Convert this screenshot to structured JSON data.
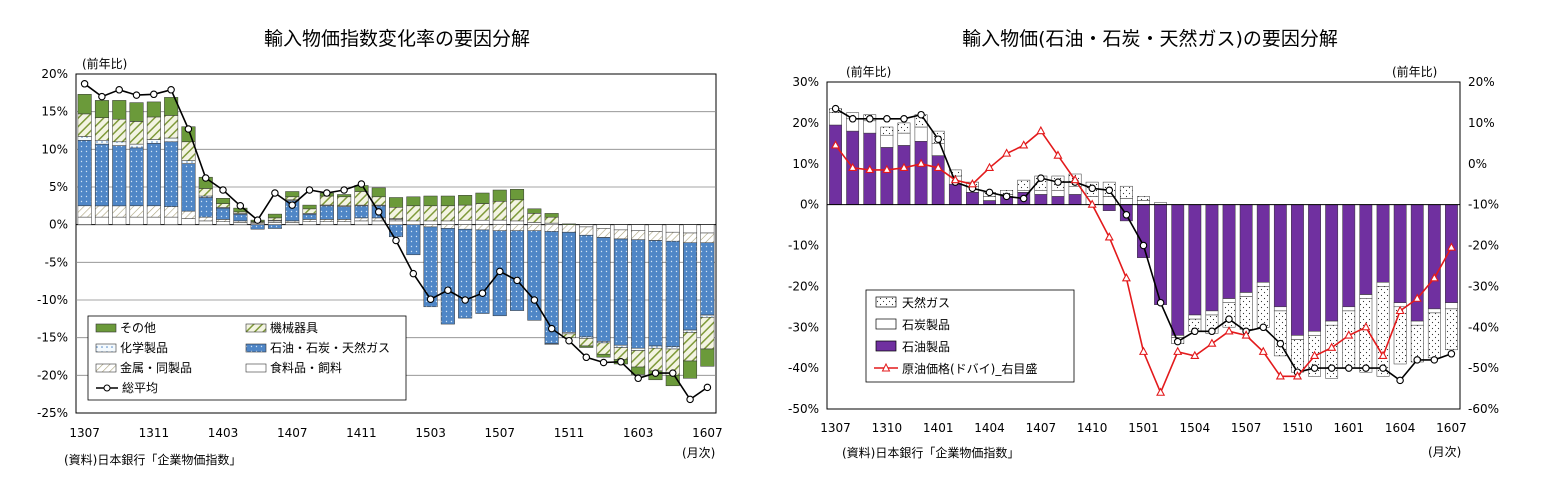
{
  "colors": {
    "sonota": "#6b9a3a",
    "kikai": "#b8c98a",
    "kagaku": "#e6f3fb",
    "sekiyu_blue": "#4f86c6",
    "kinzoku": "#e8e4c8",
    "shokuryo": "#ffffff",
    "avg_line": "#000000",
    "tennen_gas": "#ffffff",
    "sekitan": "#ffffff",
    "sekiyu_purple": "#7030a0",
    "crude": "#e31a1c"
  },
  "chart_data": [
    {
      "type": "bar",
      "stacked": true,
      "title": "輸入物価指数変化率の要因分解",
      "unit_label": "(前年比)",
      "month_label": "(月次)",
      "source": "(資料)日本銀行「企業物価指数」",
      "x": [
        "1307",
        "1308",
        "1309",
        "1310",
        "1311",
        "1312",
        "1401",
        "1402",
        "1403",
        "1404",
        "1405",
        "1406",
        "1407",
        "1408",
        "1409",
        "1410",
        "1411",
        "1412",
        "1501",
        "1502",
        "1503",
        "1504",
        "1505",
        "1506",
        "1507",
        "1508",
        "1509",
        "1510",
        "1511",
        "1512",
        "1601",
        "1602",
        "1603",
        "1604",
        "1605",
        "1606",
        "1607"
      ],
      "x_tick_labels": [
        "1307",
        "1311",
        "1403",
        "1407",
        "1411",
        "1503",
        "1507",
        "1511",
        "1603",
        "1607"
      ],
      "x_tick_every": 4,
      "ylim": [
        -25,
        20
      ],
      "y_ticks": [
        -25,
        -20,
        -15,
        -10,
        -5,
        0,
        5,
        10,
        15,
        20
      ],
      "y_tick_labels": [
        "-25%",
        "-20%",
        "-15%",
        "-10%",
        "-5%",
        "0%",
        "5%",
        "10%",
        "15%",
        "20%"
      ],
      "grid": true,
      "legend_position": "bottom-left",
      "series": [
        {
          "name": "食料品・飼料",
          "key": "shokuryo",
          "values": [
            1.0,
            1.0,
            1.0,
            1.0,
            1.0,
            1.0,
            0.8,
            0.5,
            0.4,
            0.3,
            0.2,
            0.3,
            0.3,
            0.4,
            0.4,
            0.4,
            0.5,
            0.5,
            0.5,
            0.5,
            0.5,
            0.5,
            0.6,
            0.6,
            0.6,
            0.5,
            0.3,
            0.2,
            0.0,
            -0.3,
            -0.5,
            -0.7,
            -0.8,
            -0.9,
            -1.0,
            -1.1,
            -1.1
          ]
        },
        {
          "name": "金属・同製品",
          "key": "kinzoku",
          "values": [
            1.5,
            1.5,
            1.5,
            1.5,
            1.5,
            1.4,
            1.0,
            0.5,
            0.3,
            0.2,
            0.1,
            0.2,
            0.2,
            0.3,
            0.3,
            0.3,
            0.4,
            0.4,
            0.2,
            0.0,
            -0.3,
            -0.5,
            -0.6,
            -0.7,
            -0.8,
            -0.8,
            -0.8,
            -0.9,
            -1.0,
            -1.1,
            -1.2,
            -1.2,
            -1.2,
            -1.2,
            -1.2,
            -1.3,
            -1.3
          ]
        },
        {
          "name": "石油・石炭・天然ガス",
          "key": "sekiyu",
          "values": [
            8.7,
            8.2,
            8.0,
            7.7,
            8.3,
            8.6,
            6.3,
            2.6,
            1.5,
            0.9,
            -0.6,
            -0.5,
            2.7,
            0.7,
            1.8,
            1.7,
            1.6,
            1.6,
            -1.6,
            -4.0,
            -10.6,
            -12.7,
            -11.8,
            -11.1,
            -11.3,
            -10.6,
            -11.9,
            -14.9,
            -13.3,
            -13.5,
            -13.8,
            -14.1,
            -14.4,
            -14.0,
            -14.0,
            -11.6,
            -9.6
          ]
        },
        {
          "name": "化学製品",
          "key": "kagaku",
          "values": [
            0.5,
            0.5,
            0.5,
            0.5,
            0.5,
            0.5,
            0.4,
            0.2,
            0.1,
            0.1,
            0.0,
            0.1,
            0.1,
            0.1,
            0.1,
            0.1,
            0.1,
            0.1,
            0.1,
            0.0,
            0.0,
            0.0,
            0.0,
            0.0,
            0.0,
            0.0,
            0.0,
            -0.1,
            -0.2,
            -0.2,
            -0.2,
            -0.3,
            -0.3,
            -0.3,
            -0.3,
            -0.3,
            -0.3
          ]
        },
        {
          "name": "機械器具",
          "key": "kikai",
          "values": [
            3.0,
            3.0,
            3.0,
            3.0,
            3.0,
            3.0,
            2.5,
            1.0,
            0.5,
            0.2,
            0.1,
            0.3,
            0.4,
            0.6,
            1.2,
            1.2,
            1.8,
            1.1,
            1.5,
            2.0,
            2.0,
            2.0,
            2.0,
            2.2,
            2.5,
            2.8,
            1.2,
            0.8,
            -0.5,
            -1.0,
            -1.5,
            -1.6,
            -2.2,
            -3.0,
            -3.5,
            -3.8,
            -4.2
          ]
        },
        {
          "name": "その他",
          "key": "sonota",
          "values": [
            2.6,
            2.3,
            2.5,
            2.5,
            2.0,
            2.4,
            2.0,
            1.5,
            0.7,
            0.5,
            0.2,
            0.5,
            0.7,
            0.5,
            0.4,
            0.3,
            0.8,
            1.2,
            1.3,
            1.2,
            1.3,
            1.3,
            1.3,
            1.4,
            1.5,
            1.4,
            0.6,
            0.5,
            0.1,
            -0.2,
            -0.4,
            -0.6,
            -1.0,
            -1.2,
            -1.4,
            -2.3,
            -2.3
          ]
        }
      ],
      "line": {
        "name": "総平均",
        "key": "avg",
        "values": [
          18.7,
          17.0,
          17.9,
          17.2,
          17.3,
          17.9,
          12.7,
          6.2,
          4.6,
          2.5,
          0.6,
          4.2,
          2.6,
          4.6,
          4.2,
          4.6,
          5.4,
          1.7,
          -2.1,
          -6.5,
          -9.9,
          -8.7,
          -10.0,
          -9.1,
          -6.2,
          -7.4,
          -10.0,
          -13.8,
          -15.4,
          -17.6,
          -18.3,
          -18.2,
          -20.4,
          -19.7,
          -19.7,
          -23.2,
          -21.6
        ]
      },
      "legend_order": [
        "sonota",
        "kikai",
        "kagaku",
        "sekiyu",
        "kinzoku",
        "shokuryo",
        "avg"
      ]
    },
    {
      "type": "bar",
      "stacked": true,
      "dual_axis": true,
      "title": "輸入物価(石油・石炭・天然ガス)の要因分解",
      "unit_label_left": "(前年比)",
      "unit_label_right": "(前年比)",
      "month_label": "(月次)",
      "source": "(資料)日本銀行「企業物価指数」",
      "x": [
        "1307",
        "1308",
        "1309",
        "1310",
        "1311",
        "1312",
        "1401",
        "1402",
        "1403",
        "1404",
        "1405",
        "1406",
        "1407",
        "1408",
        "1409",
        "1410",
        "1411",
        "1412",
        "1501",
        "1502",
        "1503",
        "1504",
        "1505",
        "1506",
        "1507",
        "1508",
        "1509",
        "1510",
        "1511",
        "1512",
        "1601",
        "1602",
        "1603",
        "1604",
        "1605",
        "1606",
        "1607"
      ],
      "x_tick_labels": [
        "1307",
        "1310",
        "1401",
        "1404",
        "1407",
        "1410",
        "1501",
        "1504",
        "1507",
        "1510",
        "1601",
        "1604",
        "1607"
      ],
      "x_tick_every": 3,
      "ylim": [
        -50,
        30
      ],
      "y_ticks": [
        -50,
        -40,
        -30,
        -20,
        -10,
        0,
        10,
        20,
        30
      ],
      "y_tick_labels": [
        "-50%",
        "-40%",
        "-30%",
        "-20%",
        "-10%",
        "0%",
        "10%",
        "20%",
        "30%"
      ],
      "y2lim": [
        -60,
        20
      ],
      "y2_ticks": [
        -60,
        -50,
        -40,
        -30,
        -20,
        -10,
        0,
        10,
        20
      ],
      "y2_tick_labels": [
        "-60%",
        "-50%",
        "-40%",
        "-30%",
        "-20%",
        "-10%",
        "0%",
        "10%",
        "20%"
      ],
      "grid": false,
      "legend_position": "bottom-left",
      "series": [
        {
          "name": "石油製品",
          "key": "sekiyu",
          "values": [
            19.5,
            18.0,
            17.5,
            14.0,
            14.5,
            15.5,
            12.0,
            5.0,
            3.0,
            1.0,
            2.0,
            3.0,
            2.5,
            2.0,
            2.5,
            0.0,
            -1.5,
            -4.0,
            -13.0,
            -24.5,
            -32.0,
            -27.0,
            -26.0,
            -23.0,
            -21.5,
            -19.0,
            -25.0,
            -32.0,
            -31.0,
            -28.5,
            -25.0,
            -22.0,
            -19.0,
            -24.0,
            -28.5,
            -25.5,
            -24.0
          ]
        },
        {
          "name": "石炭製品",
          "key": "sekitan",
          "values": [
            3.0,
            3.0,
            3.0,
            3.0,
            3.0,
            3.5,
            3.0,
            2.0,
            1.5,
            1.0,
            0.5,
            0.5,
            1.0,
            1.5,
            2.0,
            2.0,
            2.0,
            1.5,
            1.0,
            0.5,
            -0.5,
            -1.0,
            -1.0,
            -1.0,
            -1.0,
            -1.0,
            -1.0,
            -1.0,
            -1.0,
            -1.0,
            -1.0,
            -1.0,
            -1.0,
            -1.0,
            -1.0,
            -1.0,
            -1.5
          ]
        },
        {
          "name": "天然ガス",
          "key": "tennen",
          "values": [
            1.0,
            1.5,
            1.5,
            2.0,
            2.5,
            3.0,
            3.0,
            1.5,
            1.0,
            1.0,
            1.0,
            2.5,
            3.5,
            3.5,
            3.0,
            3.5,
            3.5,
            3.0,
            1.0,
            0.0,
            -1.5,
            -3.0,
            -4.5,
            -6.0,
            -8.0,
            -10.0,
            -11.0,
            -8.0,
            -10.0,
            -13.0,
            -14.0,
            -18.0,
            -22.0,
            -14.0,
            -9.0,
            -11.0,
            -10.0
          ]
        }
      ],
      "line": {
        "name": "合計",
        "key": "total",
        "values": [
          23.5,
          21.0,
          21.0,
          21.0,
          21.0,
          22.0,
          16.0,
          5.5,
          4.0,
          3.0,
          2.0,
          1.5,
          6.5,
          5.5,
          5.5,
          4.0,
          3.5,
          -2.5,
          -10.0,
          -24.0,
          -33.5,
          -31.0,
          -31.0,
          -28.0,
          -31.0,
          -30.0,
          -34.0,
          -41.0,
          -40.0,
          -40.0,
          -40.0,
          -40.0,
          -40.0,
          -43.0,
          -38.0,
          -38.0,
          -36.5
        ]
      },
      "line2": {
        "name": "原油価格(ドバイ)_右目盛",
        "key": "crude",
        "axis": "right",
        "values": [
          4.5,
          -1.0,
          -1.5,
          -1.5,
          -1.0,
          0.0,
          -1.0,
          -4.0,
          -5.0,
          -1.0,
          2.5,
          4.5,
          8.0,
          2.0,
          -4.0,
          -10.0,
          -18.0,
          -28.0,
          -46.0,
          -56.0,
          -46.0,
          -47.0,
          -44.0,
          -41.0,
          -42.0,
          -46.0,
          -52.0,
          -52.0,
          -47.0,
          -45.0,
          -42.0,
          -40.0,
          -47.0,
          -36.0,
          -33.0,
          -28.0,
          -20.5
        ]
      },
      "legend_order": [
        "tennen",
        "sekitan",
        "sekiyu",
        "crude"
      ]
    }
  ]
}
